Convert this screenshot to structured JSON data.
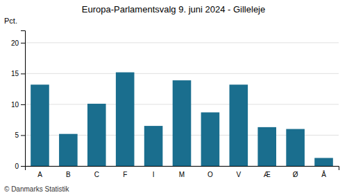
{
  "chart_data": {
    "type": "bar",
    "title": "Europa-Parlamentsvalg 9. juni 2024 - Gilleleje",
    "ylabel": "Pct.",
    "categories": [
      "A",
      "B",
      "C",
      "F",
      "I",
      "M",
      "O",
      "V",
      "Æ",
      "Ø",
      "Å"
    ],
    "values": [
      13.2,
      5.2,
      10.1,
      15.2,
      6.5,
      13.9,
      8.7,
      13.2,
      6.3,
      6.0,
      1.3
    ],
    "color": "#1a6e8e",
    "ylim": [
      0,
      22
    ],
    "yticks": [
      0,
      5,
      10,
      15,
      20
    ],
    "grid": true,
    "footer": "© Danmarks Statistik"
  }
}
